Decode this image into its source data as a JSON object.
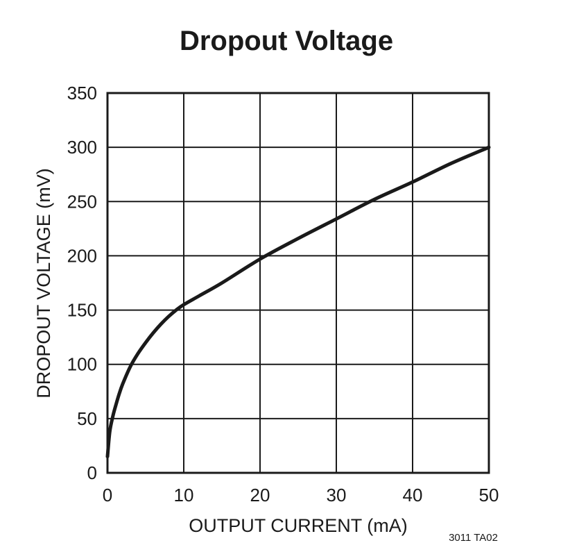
{
  "chart_data": {
    "type": "line",
    "title": "Dropout Voltage",
    "xlabel": "OUTPUT CURRENT (mA)",
    "ylabel": "DROPOUT VOLTAGE (mV)",
    "xlim": [
      0,
      50
    ],
    "ylim": [
      0,
      350
    ],
    "x_ticks": [
      0,
      10,
      20,
      30,
      40,
      50
    ],
    "y_ticks": [
      0,
      50,
      100,
      150,
      200,
      250,
      300,
      350
    ],
    "grid": true,
    "series": [
      {
        "x": [
          0,
          0.3,
          0.7,
          1,
          1.5,
          2,
          3,
          4,
          5,
          6,
          7,
          8,
          9,
          10,
          12,
          15,
          20,
          25,
          30,
          35,
          40,
          45,
          50
        ],
        "y": [
          15,
          38,
          52,
          60,
          72,
          82,
          98,
          110,
          120,
          129,
          137,
          144,
          150,
          155,
          163,
          175,
          197,
          216,
          234,
          252,
          268,
          285,
          300
        ],
        "color": "#1a1a1a"
      }
    ],
    "footnote": "3011 TA02"
  }
}
